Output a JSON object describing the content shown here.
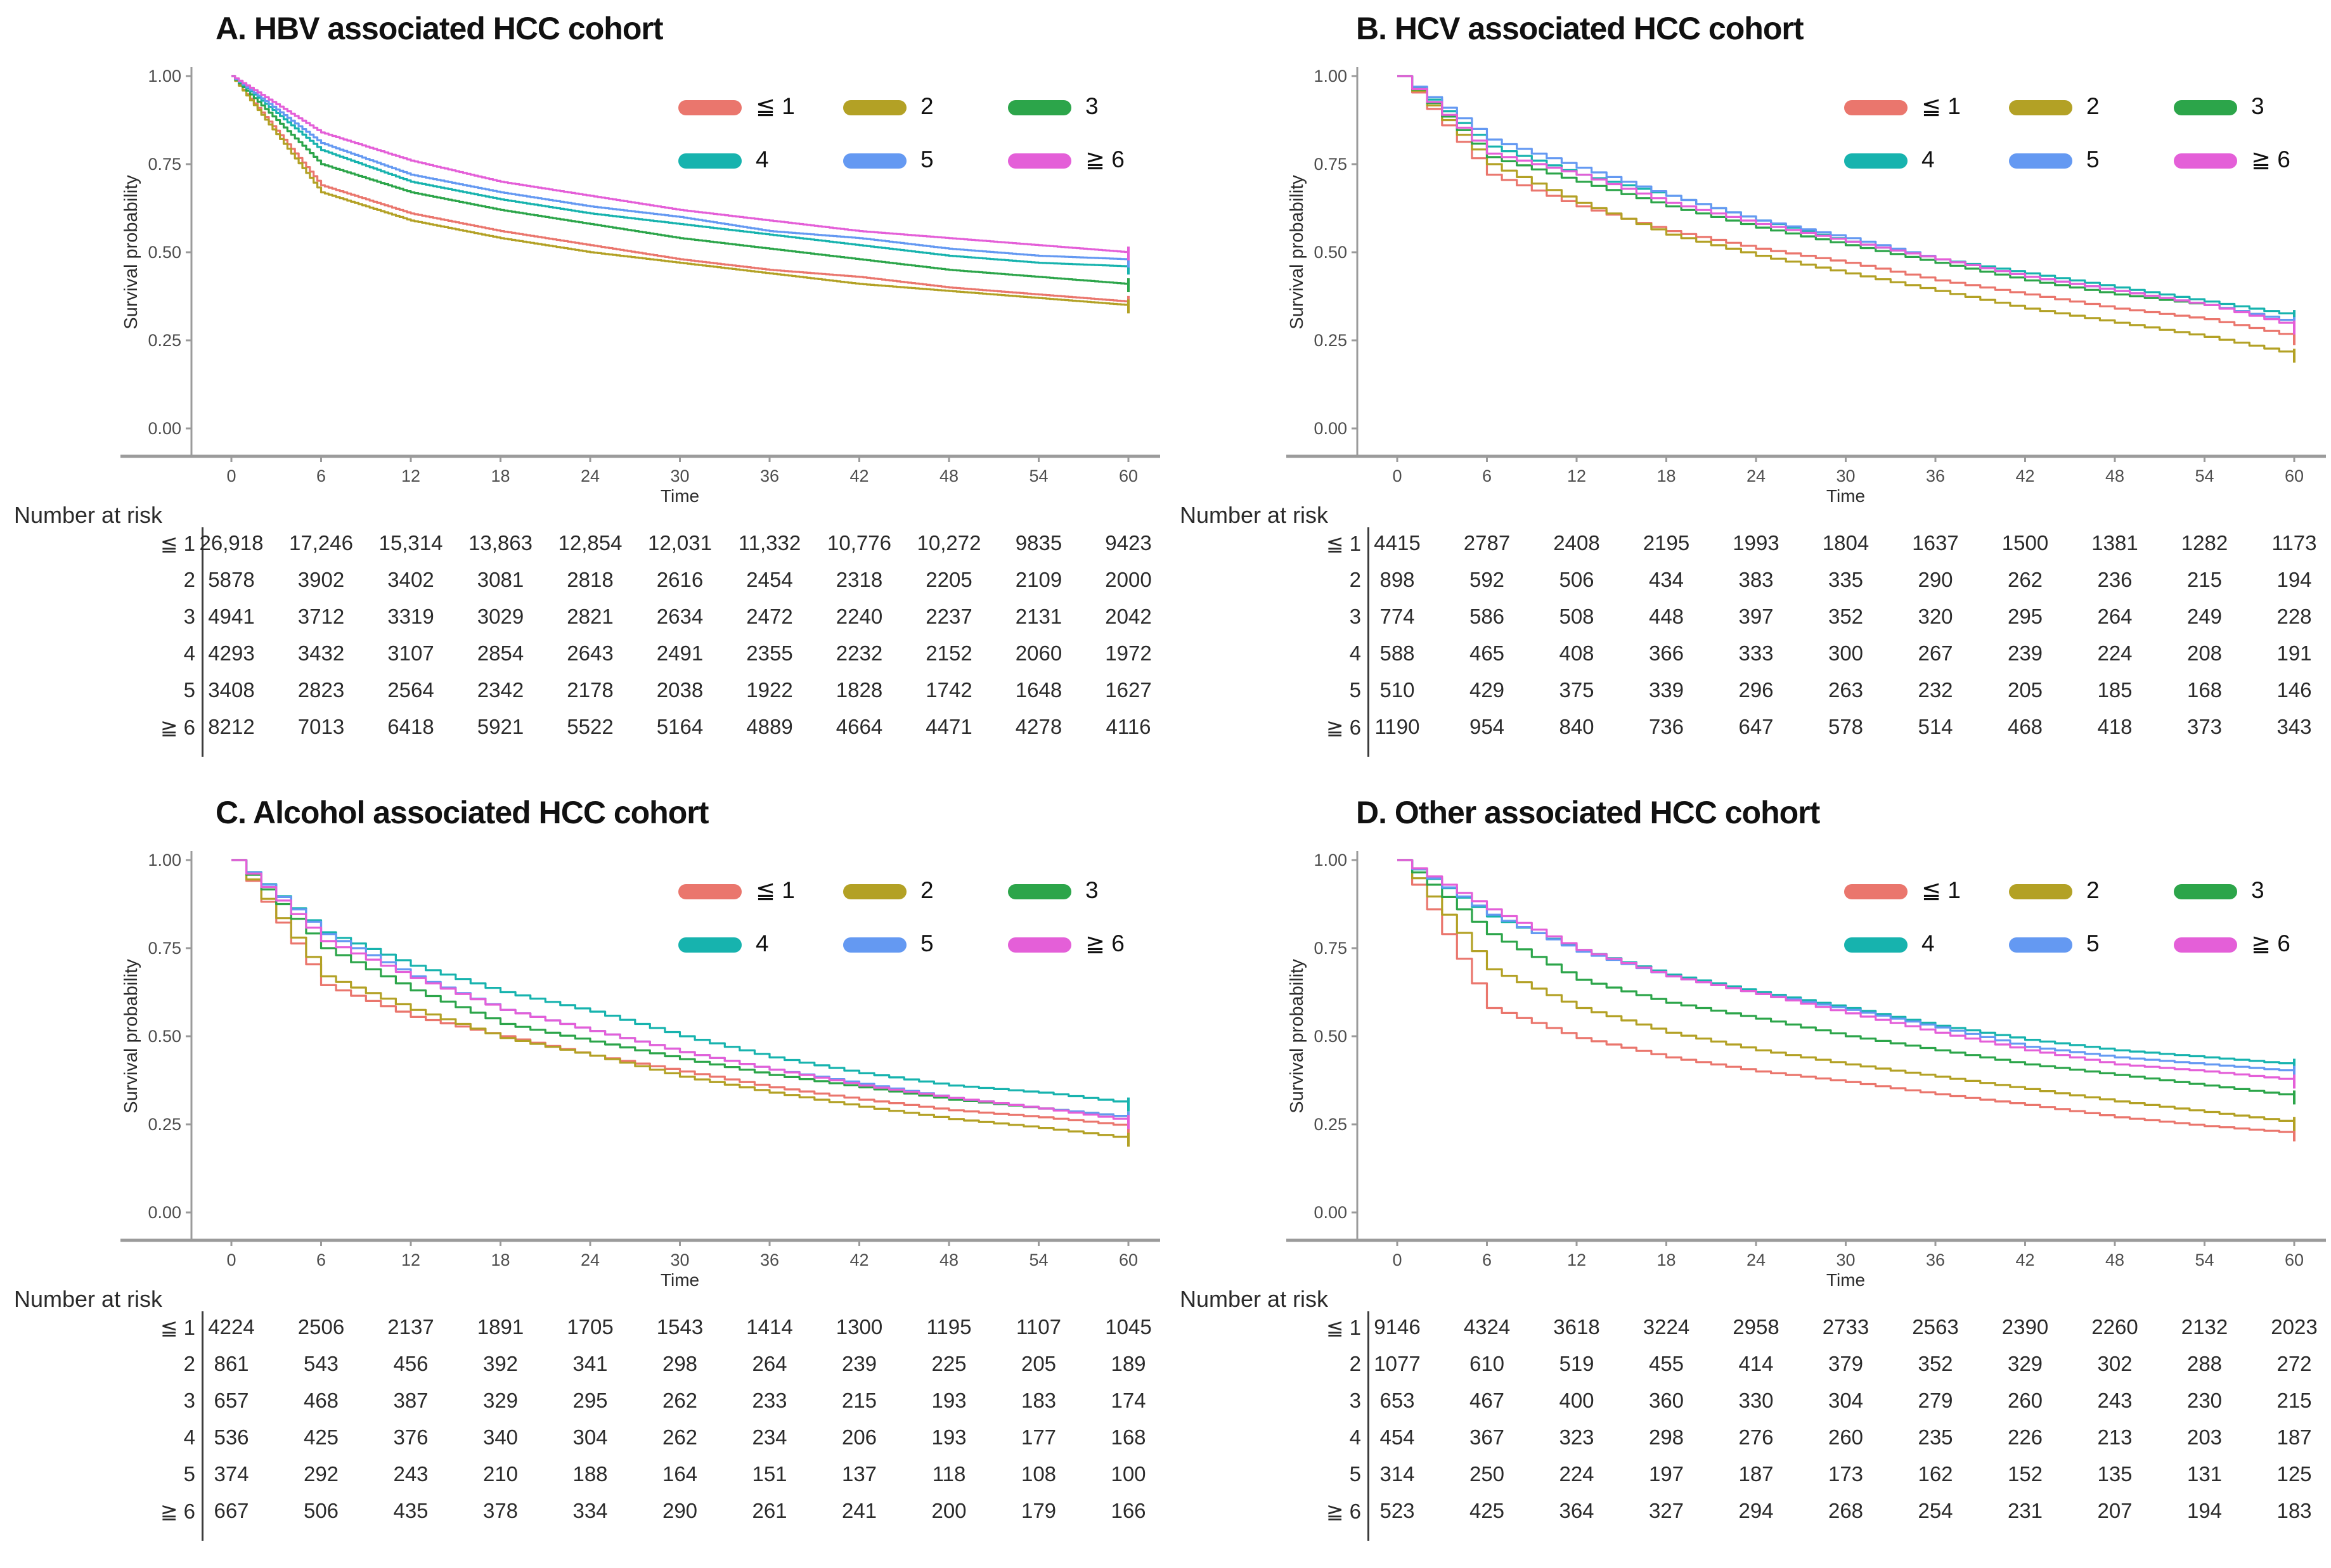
{
  "figure": {
    "risk_table_label": "Number at risk",
    "axis": {
      "ylabel": "Survival probability",
      "xlabel": "Time",
      "y_ticks": [
        "1.00",
        "0.75",
        "0.50",
        "0.25",
        "0.00"
      ],
      "x_ticks": [
        0,
        6,
        12,
        18,
        24,
        30,
        36,
        42,
        48,
        54,
        60
      ]
    },
    "legend": {
      "labels": [
        "≦ 1",
        "2",
        "3",
        "4",
        "5",
        "≧ 6"
      ],
      "position": "top-right-inside",
      "rows": 2
    },
    "colors": {
      "group_le1": "#ea766d",
      "group_2": "#b3a125",
      "group_3": "#2ca54a",
      "group_4": "#17b3ae",
      "group_5": "#6499f2",
      "group_ge6": "#e45fd8",
      "axis_line": "#9b9b9b",
      "tick_text": "#4d4d4d",
      "table_text": "#2b2b2b"
    }
  },
  "chart_data": [
    {
      "type": "line",
      "title": "A. HBV associated HCC cohort",
      "xlabel": "Time",
      "ylabel": "Survival probability",
      "x": [
        0,
        6,
        12,
        18,
        24,
        30,
        36,
        42,
        48,
        54,
        60
      ],
      "ylim": [
        0.0,
        1.0
      ],
      "smooth": true,
      "series": [
        {
          "name": "≦ 1",
          "color": "#ea766d",
          "values": [
            1.0,
            0.69,
            0.61,
            0.56,
            0.52,
            0.48,
            0.45,
            0.43,
            0.4,
            0.38,
            0.36
          ]
        },
        {
          "name": "2",
          "color": "#b3a125",
          "values": [
            1.0,
            0.67,
            0.59,
            0.54,
            0.5,
            0.47,
            0.44,
            0.41,
            0.39,
            0.37,
            0.35
          ]
        },
        {
          "name": "3",
          "color": "#2ca54a",
          "values": [
            1.0,
            0.75,
            0.67,
            0.62,
            0.58,
            0.54,
            0.51,
            0.48,
            0.45,
            0.43,
            0.41
          ]
        },
        {
          "name": "4",
          "color": "#17b3ae",
          "values": [
            1.0,
            0.79,
            0.7,
            0.65,
            0.61,
            0.58,
            0.55,
            0.52,
            0.49,
            0.47,
            0.46
          ]
        },
        {
          "name": "5",
          "color": "#6499f2",
          "values": [
            1.0,
            0.81,
            0.72,
            0.67,
            0.63,
            0.6,
            0.56,
            0.54,
            0.51,
            0.49,
            0.48
          ]
        },
        {
          "name": "≧ 6",
          "color": "#e45fd8",
          "values": [
            1.0,
            0.84,
            0.76,
            0.7,
            0.66,
            0.62,
            0.59,
            0.56,
            0.54,
            0.52,
            0.5
          ]
        }
      ],
      "risk_table": {
        "row_labels": [
          "≦ 1",
          "2",
          "3",
          "4",
          "5",
          "≧ 6"
        ],
        "rows": [
          [
            "26,918",
            "17,246",
            "15,314",
            "13,863",
            "12,854",
            "12,031",
            "11,332",
            "10,776",
            "10,272",
            "9835",
            "9423"
          ],
          [
            "5878",
            "3902",
            "3402",
            "3081",
            "2818",
            "2616",
            "2454",
            "2318",
            "2205",
            "2109",
            "2000"
          ],
          [
            "4941",
            "3712",
            "3319",
            "3029",
            "2821",
            "2634",
            "2472",
            "2240",
            "2237",
            "2131",
            "2042"
          ],
          [
            "4293",
            "3432",
            "3107",
            "2854",
            "2643",
            "2491",
            "2355",
            "2232",
            "2152",
            "2060",
            "1972"
          ],
          [
            "3408",
            "2823",
            "2564",
            "2342",
            "2178",
            "2038",
            "1922",
            "1828",
            "1742",
            "1648",
            "1627"
          ],
          [
            "8212",
            "7013",
            "6418",
            "5921",
            "5522",
            "5164",
            "4889",
            "4664",
            "4471",
            "4278",
            "4116"
          ]
        ]
      }
    },
    {
      "type": "line",
      "title": "B. HCV associated HCC cohort",
      "xlabel": "Time",
      "ylabel": "Survival probability",
      "x": [
        0,
        6,
        12,
        18,
        24,
        30,
        36,
        42,
        48,
        54,
        60
      ],
      "ylim": [
        0.0,
        1.0
      ],
      "smooth": false,
      "series": [
        {
          "name": "≦ 1",
          "color": "#ea766d",
          "values": [
            1.0,
            0.72,
            0.63,
            0.56,
            0.51,
            0.47,
            0.42,
            0.38,
            0.34,
            0.31,
            0.26
          ]
        },
        {
          "name": "2",
          "color": "#b3a125",
          "values": [
            1.0,
            0.75,
            0.64,
            0.55,
            0.49,
            0.44,
            0.39,
            0.34,
            0.3,
            0.26,
            0.21
          ]
        },
        {
          "name": "3",
          "color": "#2ca54a",
          "values": [
            1.0,
            0.77,
            0.7,
            0.63,
            0.57,
            0.52,
            0.47,
            0.42,
            0.38,
            0.35,
            0.3
          ]
        },
        {
          "name": "4",
          "color": "#17b3ae",
          "values": [
            1.0,
            0.8,
            0.72,
            0.66,
            0.59,
            0.53,
            0.48,
            0.44,
            0.4,
            0.36,
            0.32
          ]
        },
        {
          "name": "5",
          "color": "#6499f2",
          "values": [
            1.0,
            0.82,
            0.74,
            0.66,
            0.59,
            0.54,
            0.48,
            0.43,
            0.39,
            0.35,
            0.3
          ]
        },
        {
          "name": "≧ 6",
          "color": "#e45fd8",
          "values": [
            1.0,
            0.78,
            0.72,
            0.64,
            0.58,
            0.53,
            0.48,
            0.43,
            0.39,
            0.35,
            0.29
          ]
        }
      ],
      "risk_table": {
        "row_labels": [
          "≦ 1",
          "2",
          "3",
          "4",
          "5",
          "≧ 6"
        ],
        "rows": [
          [
            "4415",
            "2787",
            "2408",
            "2195",
            "1993",
            "1804",
            "1637",
            "1500",
            "1381",
            "1282",
            "1173"
          ],
          [
            "898",
            "592",
            "506",
            "434",
            "383",
            "335",
            "290",
            "262",
            "236",
            "215",
            "194"
          ],
          [
            "774",
            "586",
            "508",
            "448",
            "397",
            "352",
            "320",
            "295",
            "264",
            "249",
            "228"
          ],
          [
            "588",
            "465",
            "408",
            "366",
            "333",
            "300",
            "267",
            "239",
            "224",
            "208",
            "191"
          ],
          [
            "510",
            "429",
            "375",
            "339",
            "296",
            "263",
            "232",
            "205",
            "185",
            "168",
            "146"
          ],
          [
            "1190",
            "954",
            "840",
            "736",
            "647",
            "578",
            "514",
            "468",
            "418",
            "373",
            "343"
          ]
        ]
      }
    },
    {
      "type": "line",
      "title": "C. Alcohol associated HCC cohort",
      "xlabel": "Time",
      "ylabel": "Survival probability",
      "x": [
        0,
        6,
        12,
        18,
        24,
        30,
        36,
        42,
        48,
        54,
        60
      ],
      "ylim": [
        0.0,
        1.0
      ],
      "smooth": false,
      "series": [
        {
          "name": "≦ 1",
          "color": "#ea766d",
          "values": [
            1.0,
            0.645,
            0.555,
            0.5,
            0.445,
            0.4,
            0.355,
            0.32,
            0.29,
            0.27,
            0.245
          ]
        },
        {
          "name": "2",
          "color": "#b3a125",
          "values": [
            1.0,
            0.67,
            0.575,
            0.495,
            0.445,
            0.385,
            0.34,
            0.3,
            0.265,
            0.24,
            0.21
          ]
        },
        {
          "name": "3",
          "color": "#2ca54a",
          "values": [
            1.0,
            0.75,
            0.63,
            0.535,
            0.485,
            0.435,
            0.39,
            0.355,
            0.32,
            0.295,
            0.27
          ]
        },
        {
          "name": "4",
          "color": "#17b3ae",
          "values": [
            1.0,
            0.795,
            0.7,
            0.625,
            0.57,
            0.5,
            0.44,
            0.395,
            0.36,
            0.34,
            0.31
          ]
        },
        {
          "name": "5",
          "color": "#6499f2",
          "values": [
            1.0,
            0.79,
            0.67,
            0.575,
            0.515,
            0.455,
            0.405,
            0.365,
            0.325,
            0.295,
            0.27
          ]
        },
        {
          "name": "≧ 6",
          "color": "#e45fd8",
          "values": [
            1.0,
            0.77,
            0.665,
            0.575,
            0.515,
            0.455,
            0.405,
            0.36,
            0.325,
            0.295,
            0.26
          ]
        }
      ],
      "risk_table": {
        "row_labels": [
          "≦ 1",
          "2",
          "3",
          "4",
          "5",
          "≧ 6"
        ],
        "rows": [
          [
            "4224",
            "2506",
            "2137",
            "1891",
            "1705",
            "1543",
            "1414",
            "1300",
            "1195",
            "1107",
            "1045"
          ],
          [
            "861",
            "543",
            "456",
            "392",
            "341",
            "298",
            "264",
            "239",
            "225",
            "205",
            "189"
          ],
          [
            "657",
            "468",
            "387",
            "329",
            "295",
            "262",
            "233",
            "215",
            "193",
            "183",
            "174"
          ],
          [
            "536",
            "425",
            "376",
            "340",
            "304",
            "262",
            "234",
            "206",
            "193",
            "177",
            "168"
          ],
          [
            "374",
            "292",
            "243",
            "210",
            "188",
            "164",
            "151",
            "137",
            "118",
            "108",
            "100"
          ],
          [
            "667",
            "506",
            "435",
            "378",
            "334",
            "290",
            "261",
            "241",
            "200",
            "179",
            "166"
          ]
        ]
      }
    },
    {
      "type": "line",
      "title": "D. Other associated HCC cohort",
      "xlabel": "Time",
      "ylabel": "Survival probability",
      "x": [
        0,
        6,
        12,
        18,
        24,
        30,
        36,
        42,
        48,
        54,
        60
      ],
      "ylim": [
        0.0,
        1.0
      ],
      "smooth": false,
      "series": [
        {
          "name": "≦ 1",
          "color": "#ea766d",
          "values": [
            1.0,
            0.58,
            0.495,
            0.44,
            0.4,
            0.37,
            0.335,
            0.305,
            0.27,
            0.245,
            0.225
          ]
        },
        {
          "name": "2",
          "color": "#b3a125",
          "values": [
            1.0,
            0.69,
            0.58,
            0.51,
            0.46,
            0.42,
            0.385,
            0.35,
            0.315,
            0.285,
            0.255
          ]
        },
        {
          "name": "3",
          "color": "#2ca54a",
          "values": [
            1.0,
            0.79,
            0.66,
            0.595,
            0.55,
            0.5,
            0.46,
            0.42,
            0.39,
            0.36,
            0.33
          ]
        },
        {
          "name": "4",
          "color": "#17b3ae",
          "values": [
            1.0,
            0.84,
            0.745,
            0.675,
            0.625,
            0.58,
            0.53,
            0.49,
            0.46,
            0.44,
            0.42
          ]
        },
        {
          "name": "5",
          "color": "#6499f2",
          "values": [
            1.0,
            0.845,
            0.74,
            0.67,
            0.62,
            0.575,
            0.525,
            0.47,
            0.44,
            0.42,
            0.4
          ]
        },
        {
          "name": "≧ 6",
          "color": "#e45fd8",
          "values": [
            1.0,
            0.86,
            0.745,
            0.67,
            0.62,
            0.565,
            0.51,
            0.46,
            0.42,
            0.4,
            0.375
          ]
        }
      ],
      "risk_table": {
        "row_labels": [
          "≦ 1",
          "2",
          "3",
          "4",
          "5",
          "≧ 6"
        ],
        "rows": [
          [
            "9146",
            "4324",
            "3618",
            "3224",
            "2958",
            "2733",
            "2563",
            "2390",
            "2260",
            "2132",
            "2023"
          ],
          [
            "1077",
            "610",
            "519",
            "455",
            "414",
            "379",
            "352",
            "329",
            "302",
            "288",
            "272"
          ],
          [
            "653",
            "467",
            "400",
            "360",
            "330",
            "304",
            "279",
            "260",
            "243",
            "230",
            "215"
          ],
          [
            "454",
            "367",
            "323",
            "298",
            "276",
            "260",
            "235",
            "226",
            "213",
            "203",
            "187"
          ],
          [
            "314",
            "250",
            "224",
            "197",
            "187",
            "173",
            "162",
            "152",
            "135",
            "131",
            "125"
          ],
          [
            "523",
            "425",
            "364",
            "327",
            "294",
            "268",
            "254",
            "231",
            "207",
            "194",
            "183"
          ]
        ]
      }
    }
  ]
}
